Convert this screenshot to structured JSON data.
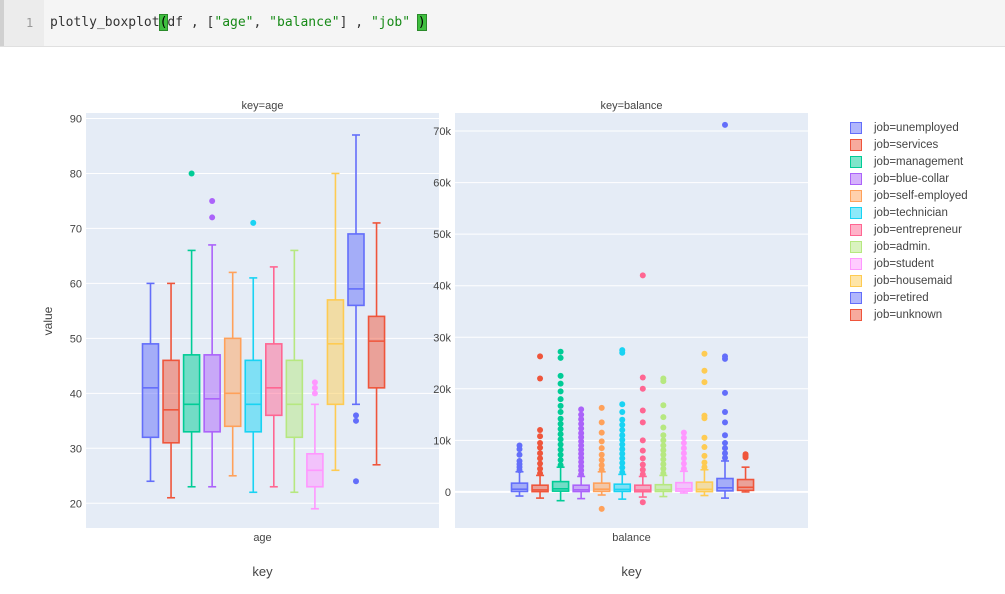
{
  "code": {
    "line_number": "1",
    "fn": "plotly_boxplot",
    "open_paren": "(",
    "arg1": "df , [",
    "s_age": "\"age\"",
    "sep": ", ",
    "s_balance": "\"balance\"",
    "mid": "] , ",
    "s_job": "\"job\"",
    "space": " ",
    "close_paren": ")"
  },
  "chart_data": {
    "type": "box",
    "ylabel": "value",
    "xlabel_shared": "key",
    "panels": [
      {
        "title": "key=age",
        "category_label": "age",
        "xlabel": "key",
        "ylim": [
          15.5,
          91
        ],
        "yticks": [
          20,
          30,
          40,
          50,
          60,
          70,
          80,
          90
        ],
        "ytick_labels": [
          "20",
          "30",
          "40",
          "50",
          "60",
          "70",
          "80",
          "90"
        ]
      },
      {
        "title": "key=balance",
        "category_label": "balance",
        "xlabel": "key",
        "ylim": [
          -7000,
          73500
        ],
        "yticks": [
          0,
          10000,
          20000,
          30000,
          40000,
          50000,
          60000,
          70000
        ],
        "ytick_labels": [
          "0",
          "10k",
          "20k",
          "30k",
          "40k",
          "50k",
          "60k",
          "70k"
        ]
      }
    ],
    "series": [
      {
        "name": "job=unemployed",
        "color": "#636efa",
        "age": {
          "min": 24,
          "q1": 32,
          "median": 41,
          "q3": 49,
          "max": 60,
          "outliers": []
        },
        "balance": {
          "min": -800,
          "q1": 80,
          "median": 530,
          "q3": 1700,
          "max": 3900,
          "outliers": [
            4200,
            4800,
            5400,
            6000,
            7200,
            8300,
            9000
          ]
        }
      },
      {
        "name": "job=services",
        "color": "#ef553b",
        "age": {
          "min": 21,
          "q1": 31,
          "median": 37,
          "q3": 46,
          "max": 60,
          "outliers": []
        },
        "balance": {
          "min": -1200,
          "q1": 50,
          "median": 380,
          "q3": 1300,
          "max": 3200,
          "outliers": [
            3600,
            4500,
            5500,
            6500,
            7500,
            8600,
            9500,
            10800,
            12000,
            22000,
            26300
          ]
        }
      },
      {
        "name": "job=management",
        "color": "#00cc96",
        "age": {
          "min": 23,
          "q1": 33,
          "median": 38,
          "q3": 47,
          "max": 66,
          "outliers": [
            80
          ]
        },
        "balance": {
          "min": -1700,
          "q1": 150,
          "median": 600,
          "q3": 2000,
          "max": 4800,
          "outliers": [
            5200,
            6200,
            7200,
            8200,
            9200,
            10200,
            11200,
            12200,
            13200,
            14200,
            15500,
            16700,
            18000,
            19500,
            21000,
            22500,
            26000,
            27200
          ]
        }
      },
      {
        "name": "job=blue-collar",
        "color": "#ab63fa",
        "age": {
          "min": 23,
          "q1": 33,
          "median": 39,
          "q3": 47,
          "max": 67,
          "outliers": [
            72,
            75
          ]
        },
        "balance": {
          "min": -1300,
          "q1": 60,
          "median": 400,
          "q3": 1300,
          "max": 3000,
          "outliers": [
            3400,
            4200,
            5000,
            5800,
            6600,
            7400,
            8200,
            9000,
            9800,
            10600,
            11400,
            12300,
            13200,
            14100,
            15000,
            16000
          ]
        }
      },
      {
        "name": "job=self-employed",
        "color": "#ffa15a",
        "age": {
          "min": 25,
          "q1": 34,
          "median": 40,
          "q3": 50,
          "max": 62,
          "outliers": []
        },
        "balance": {
          "min": -600,
          "q1": 100,
          "median": 520,
          "q3": 1700,
          "max": 3900,
          "outliers": [
            -3300,
            4300,
            5200,
            6200,
            7200,
            8500,
            9800,
            11500,
            13500,
            16300
          ]
        }
      },
      {
        "name": "job=technician",
        "color": "#19d3f3",
        "age": {
          "min": 22,
          "q1": 33,
          "median": 38,
          "q3": 46,
          "max": 61,
          "outliers": [
            71
          ]
        },
        "balance": {
          "min": -1400,
          "q1": 80,
          "median": 480,
          "q3": 1500,
          "max": 3400,
          "outliers": [
            3800,
            4700,
            5600,
            6500,
            7400,
            8300,
            9200,
            10100,
            11000,
            12000,
            13000,
            14000,
            15500,
            17000,
            27000,
            27500
          ]
        }
      },
      {
        "name": "job=entrepreneur",
        "color": "#ff6692",
        "age": {
          "min": 23,
          "q1": 36,
          "median": 41,
          "q3": 49,
          "max": 63,
          "outliers": []
        },
        "balance": {
          "min": -1000,
          "q1": 30,
          "median": 360,
          "q3": 1300,
          "max": 3000,
          "outliers": [
            -2000,
            3400,
            4300,
            5300,
            6500,
            8000,
            10000,
            13500,
            15800,
            20000,
            22200,
            42000
          ]
        }
      },
      {
        "name": "job=admin.",
        "color": "#b6e880",
        "age": {
          "min": 22,
          "q1": 32,
          "median": 38,
          "q3": 46,
          "max": 66,
          "outliers": []
        },
        "balance": {
          "min": -900,
          "q1": 70,
          "median": 430,
          "q3": 1400,
          "max": 3200,
          "outliers": [
            3600,
            4500,
            5400,
            6300,
            7200,
            8100,
            9000,
            10000,
            11000,
            12500,
            14500,
            16800,
            21500,
            22000
          ]
        }
      },
      {
        "name": "job=student",
        "color": "#ff97ff",
        "age": {
          "min": 19,
          "q1": 23,
          "median": 26,
          "q3": 29,
          "max": 38,
          "outliers": [
            40,
            41,
            42
          ]
        },
        "balance": {
          "min": -200,
          "q1": 150,
          "median": 600,
          "q3": 1800,
          "max": 4000,
          "outliers": [
            4500,
            5500,
            6500,
            7500,
            8500,
            9500,
            10500,
            11500
          ]
        }
      },
      {
        "name": "job=housemaid",
        "color": "#fecb52",
        "age": {
          "min": 26,
          "q1": 38,
          "median": 49,
          "q3": 57,
          "max": 80,
          "outliers": []
        },
        "balance": {
          "min": -700,
          "q1": 50,
          "median": 500,
          "q3": 1900,
          "max": 4300,
          "outliers": [
            4800,
            5700,
            7000,
            8700,
            10500,
            14300,
            14800,
            21300,
            23500,
            26800
          ]
        }
      },
      {
        "name": "job=retired",
        "color": "#636efa",
        "age": {
          "min": 38,
          "q1": 56,
          "median": 59,
          "q3": 69,
          "max": 87,
          "outliers": [
            36,
            35,
            24
          ]
        },
        "balance": {
          "min": -1200,
          "q1": 200,
          "median": 800,
          "q3": 2600,
          "max": 6000,
          "outliers": [
            6600,
            7500,
            8500,
            9500,
            11000,
            13500,
            15500,
            19200,
            25800,
            26300,
            71200
          ]
        }
      },
      {
        "name": "job=unknown",
        "color": "#ef553b",
        "age": {
          "min": 27,
          "q1": 41,
          "median": 49.5,
          "q3": 54,
          "max": 71,
          "outliers": []
        },
        "balance": {
          "min": 0,
          "q1": 300,
          "median": 900,
          "q3": 2400,
          "max": 4800,
          "outliers": [
            6700,
            7000,
            7300
          ]
        }
      }
    ]
  }
}
